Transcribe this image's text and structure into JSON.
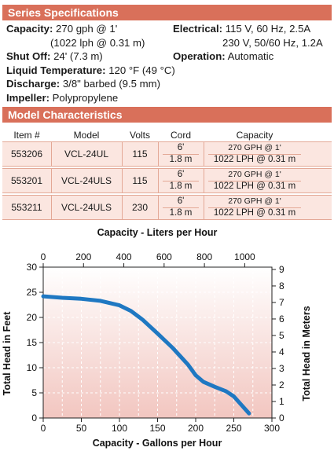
{
  "series_spec": {
    "heading": "Series Specifications",
    "capacity_label": "Capacity:",
    "capacity_value": "270 gph @ 1'",
    "capacity_value2": "(1022 lph @ 0.31 m)",
    "shutoff_label": "Shut Off:",
    "shutoff_value": "24' (7.3 m)",
    "liquid_temp_label": "Liquid Temperature:",
    "liquid_temp_value": "120 °F (49 °C)",
    "discharge_label": "Discharge:",
    "discharge_value": "3/8\" barbed (9.5 mm)",
    "impeller_label": "Impeller:",
    "impeller_value": "Polypropylene",
    "electrical_label": "Electrical:",
    "electrical_value": "115 V, 60 Hz, 2.5A",
    "electrical_value2": "230 V, 50/60 Hz, 1.2A",
    "operation_label": "Operation:",
    "operation_value": "Automatic"
  },
  "model_char": {
    "heading": "Model Characteristics",
    "columns": [
      "Item #",
      "Model",
      "Volts",
      "Cord",
      "Capacity"
    ],
    "rows": [
      {
        "item": "553206",
        "model": "VCL-24UL",
        "volts": "115",
        "cord_ft": "6'",
        "cord_m": "1.8 m",
        "cap_gph": "270 GPH @ 1'",
        "cap_lph": "1022 LPH @ 0.31 m"
      },
      {
        "item": "553201",
        "model": "VCL-24ULS",
        "volts": "115",
        "cord_ft": "6'",
        "cord_m": "1.8 m",
        "cap_gph": "270 GPH @ 1'",
        "cap_lph": "1022 LPH @ 0.31 m"
      },
      {
        "item": "553211",
        "model": "VCL-24ULS",
        "volts": "230",
        "cord_ft": "6'",
        "cord_m": "1.8 m",
        "cap_gph": "270 GPH @ 1'",
        "cap_lph": "1022 LPH @ 0.31 m"
      }
    ]
  },
  "chart_data": {
    "type": "line",
    "title": "Capacity - Liters per Hour",
    "xlabel": "Capacity - Gallons per Hour",
    "ylabel": "Total Head in Feet",
    "y2label": "Total Head in Meters",
    "xlim": [
      0,
      300
    ],
    "ylim": [
      0,
      30
    ],
    "x2lim": [
      0,
      1135
    ],
    "y2lim": [
      0,
      9.14
    ],
    "x_ticks": [
      0,
      50,
      100,
      150,
      200,
      250,
      300
    ],
    "y_ticks": [
      0,
      5,
      10,
      15,
      20,
      25,
      30
    ],
    "x2_ticks": [
      0,
      200,
      400,
      600,
      800,
      1000
    ],
    "y2_ticks": [
      0,
      1,
      2,
      3,
      4,
      5,
      6,
      7,
      8,
      9
    ],
    "grid": true,
    "line_color": "#1f78c2",
    "series": [
      {
        "x": [
          0,
          25,
          50,
          75,
          100,
          115,
          130,
          150,
          170,
          190,
          200,
          210,
          225,
          240,
          250,
          260,
          270
        ],
        "y": [
          24.2,
          23.9,
          23.7,
          23.3,
          22.4,
          21.3,
          19.6,
          16.8,
          13.9,
          10.6,
          8.5,
          7.2,
          6.2,
          5.3,
          4.3,
          2.6,
          0.9
        ]
      }
    ]
  }
}
